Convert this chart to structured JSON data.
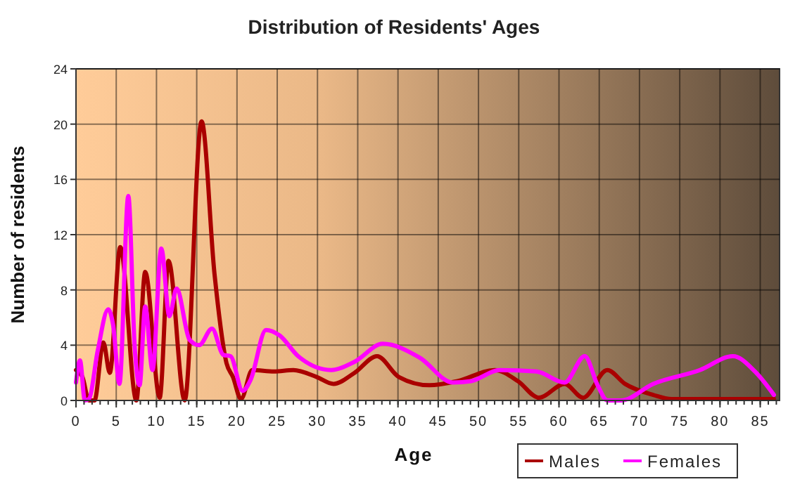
{
  "chart_data": {
    "type": "line",
    "title": "Distribution of Residents' Ages",
    "xlabel": "Age",
    "ylabel": "Number of residents",
    "xlim": [
      0,
      87.4
    ],
    "xticks": [
      0,
      5,
      10,
      15,
      20,
      25,
      30,
      35,
      40,
      45,
      50,
      55,
      60,
      65,
      70,
      75,
      80,
      85
    ],
    "ylim": [
      0,
      24
    ],
    "yticks": [
      0,
      4,
      8,
      12,
      16,
      20,
      24
    ],
    "grid": true,
    "legend": "bottom right",
    "marker": "none",
    "line_style": "solid",
    "series": [
      {
        "name": "Males",
        "color": "#aa0000",
        "x": [
          0,
          0.8,
          1.6,
          2.3,
          3.4,
          4.2,
          5.5,
          7.5,
          8.6,
          10.4,
          11.5,
          13.5,
          15.6,
          17.2,
          18.7,
          19.5,
          20.5,
          21.9,
          24.6,
          27,
          29.9,
          32,
          34.6,
          37.4,
          40.1,
          43.9,
          47.4,
          52,
          54.9,
          57.5,
          60.7,
          63,
          66,
          68.2,
          71.7,
          74,
          86.7
        ],
        "values": [
          2.2,
          1.7,
          0,
          0,
          4.2,
          2,
          11.1,
          0,
          9.3,
          0.2,
          10.1,
          0,
          20.2,
          9.2,
          2.7,
          1.7,
          0.1,
          2.2,
          2.1,
          2.2,
          1.7,
          1.2,
          2,
          3.2,
          1.7,
          1.1,
          1.4,
          2.2,
          1.4,
          0.2,
          1.2,
          0.2,
          2.2,
          1.2,
          0.4,
          0.1,
          0.1
        ]
      },
      {
        "name": "Females",
        "color": "#ff00ff",
        "x": [
          0,
          0.5,
          1.1,
          1.6,
          2.7,
          4,
          4.6,
          5.4,
          6.5,
          7.3,
          7.9,
          8.6,
          9.5,
          10.6,
          11.6,
          12.5,
          14.1,
          15.3,
          16.9,
          18.3,
          19.2,
          20.7,
          21.7,
          23.6,
          25.3,
          27.6,
          31.7,
          34.6,
          38.1,
          42.7,
          46.8,
          49.1,
          52.6,
          57.2,
          60.7,
          63.2,
          64.8,
          66,
          67.7,
          71.7,
          77.5,
          81.6,
          84.5,
          86.7
        ],
        "values": [
          1.3,
          2.9,
          0,
          0.1,
          3.6,
          6.6,
          5.5,
          1.2,
          14.8,
          3.8,
          1.1,
          6.8,
          2.2,
          11,
          6.1,
          8.1,
          4.4,
          4,
          5.2,
          3.3,
          3.2,
          0.7,
          1.5,
          5.1,
          4.7,
          3.2,
          2.2,
          2.8,
          4.1,
          3.1,
          1.3,
          1.4,
          2.2,
          2.1,
          1.3,
          3.2,
          1.1,
          0,
          0,
          1.2,
          2.2,
          3.2,
          2,
          0.4
        ]
      }
    ]
  }
}
